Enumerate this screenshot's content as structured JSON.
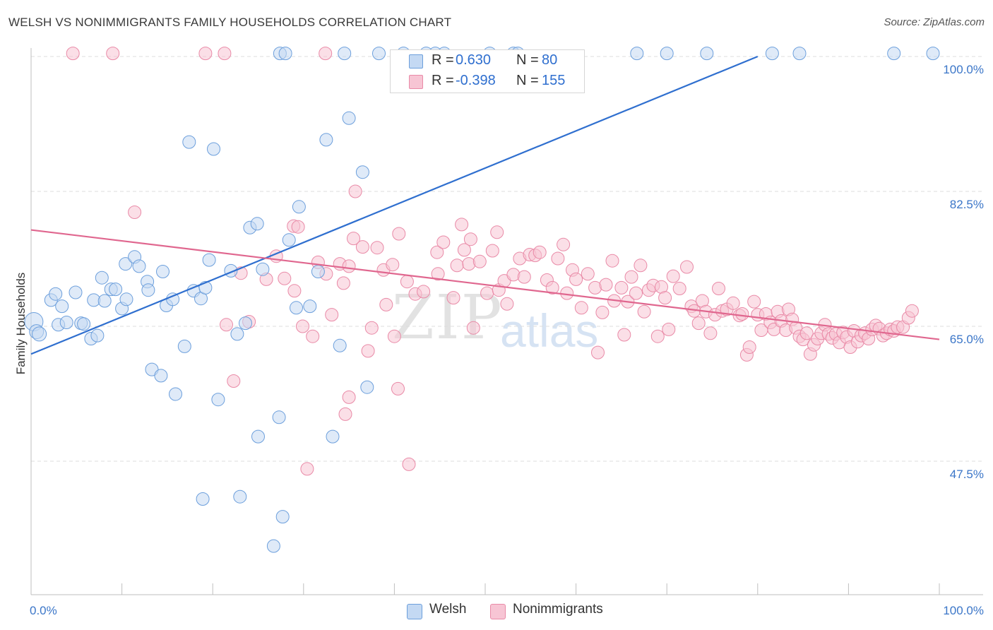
{
  "title": "WELSH VS NONIMMIGRANTS FAMILY HOUSEHOLDS CORRELATION CHART",
  "source": "Source: ZipAtlas.com",
  "watermark": {
    "zip": "ZIP",
    "atlas": "atlas"
  },
  "colors": {
    "welsh": "#6c9fdc",
    "welsh_fill": "#c4d9f3",
    "welsh_line": "#2f6fcf",
    "nonimm": "#e98aa7",
    "nonimm_fill": "#f7c5d4",
    "nonimm_line": "#e0678f",
    "tick": "#3b76c8"
  },
  "legend": {
    "welsh": {
      "r_label": "R =",
      "r_value": "0.630",
      "n_label": "N =",
      "n_value": "80"
    },
    "nonimm": {
      "r_label": "R =",
      "r_value": "-0.398",
      "n_label": "N =",
      "n_value": "155"
    }
  },
  "bottom_legend": {
    "welsh": "Welsh",
    "nonimm": "Nonimmigrants"
  },
  "chart_data": {
    "type": "scatter",
    "title": "WELSH VS NONIMMIGRANTS FAMILY HOUSEHOLDS CORRELATION CHART",
    "xlabel": "",
    "ylabel": "Family Households",
    "xlim": [
      0,
      100
    ],
    "ylim": [
      30,
      101
    ],
    "y_ticks": [
      {
        "v": 100,
        "label": "100.0%"
      },
      {
        "v": 82.5,
        "label": "82.5%"
      },
      {
        "v": 65,
        "label": "65.0%"
      },
      {
        "v": 47.5,
        "label": "47.5%"
      }
    ],
    "x_tick_labels": [
      {
        "v": 0,
        "label": "0.0%"
      },
      {
        "v": 100,
        "label": "100.0%"
      }
    ],
    "series": [
      {
        "name": "Welsh",
        "R": 0.63,
        "N": 80,
        "trend": [
          [
            0,
            61.4
          ],
          [
            80,
            100
          ]
        ],
        "points": [
          [
            0.3,
            65.6
          ],
          [
            0.6,
            64.3
          ],
          [
            0.9,
            64.0
          ],
          [
            2.2,
            68.4
          ],
          [
            2.7,
            69.2
          ],
          [
            3.0,
            65.2
          ],
          [
            3.4,
            67.6
          ],
          [
            3.9,
            65.5
          ],
          [
            4.9,
            69.4
          ],
          [
            5.5,
            65.4
          ],
          [
            5.8,
            65.3
          ],
          [
            6.6,
            63.4
          ],
          [
            6.9,
            68.4
          ],
          [
            7.3,
            63.8
          ],
          [
            7.8,
            71.3
          ],
          [
            8.1,
            68.3
          ],
          [
            8.8,
            69.8
          ],
          [
            9.3,
            69.8
          ],
          [
            10.0,
            67.3
          ],
          [
            10.5,
            68.5
          ],
          [
            10.4,
            73.1
          ],
          [
            11.4,
            74.0
          ],
          [
            11.9,
            72.8
          ],
          [
            12.8,
            70.8
          ],
          [
            12.9,
            69.7
          ],
          [
            13.3,
            59.4
          ],
          [
            14.3,
            58.6
          ],
          [
            14.5,
            72.1
          ],
          [
            14.9,
            67.7
          ],
          [
            15.6,
            68.5
          ],
          [
            15.9,
            56.2
          ],
          [
            16.9,
            62.4
          ],
          [
            17.4,
            88.9
          ],
          [
            17.9,
            69.6
          ],
          [
            18.7,
            68.6
          ],
          [
            18.9,
            42.6
          ],
          [
            19.2,
            70.0
          ],
          [
            19.6,
            73.6
          ],
          [
            20.1,
            88.0
          ],
          [
            20.6,
            55.5
          ],
          [
            22.0,
            72.2
          ],
          [
            22.7,
            64.0
          ],
          [
            23.0,
            42.9
          ],
          [
            23.6,
            65.4
          ],
          [
            24.1,
            77.8
          ],
          [
            24.9,
            78.3
          ],
          [
            25.0,
            50.7
          ],
          [
            25.5,
            72.4
          ],
          [
            26.7,
            36.5
          ],
          [
            27.3,
            53.2
          ],
          [
            27.7,
            40.3
          ],
          [
            28.4,
            76.2
          ],
          [
            29.2,
            67.4
          ],
          [
            29.5,
            80.5
          ],
          [
            30.7,
            67.6
          ],
          [
            31.6,
            72.1
          ],
          [
            32.5,
            89.2
          ],
          [
            33.2,
            50.7
          ],
          [
            34.0,
            62.5
          ],
          [
            35.0,
            92.0
          ],
          [
            36.5,
            85.0
          ],
          [
            37.0,
            57.1
          ],
          [
            27.4,
            100.4
          ],
          [
            28.0,
            100.4
          ],
          [
            34.5,
            100.4
          ],
          [
            38.3,
            100.4
          ],
          [
            41.0,
            100.4
          ],
          [
            44.5,
            100.4
          ],
          [
            45.5,
            100.4
          ],
          [
            50.5,
            100.4
          ],
          [
            53.1,
            100.4
          ],
          [
            53.6,
            100.4
          ],
          [
            66.7,
            100.4
          ],
          [
            70.0,
            100.4
          ],
          [
            74.4,
            100.4
          ],
          [
            81.6,
            100.4
          ],
          [
            84.6,
            100.4
          ],
          [
            95.0,
            100.4
          ],
          [
            99.3,
            100.4
          ],
          [
            43.5,
            100.4
          ]
        ]
      },
      {
        "name": "Nonimmigrants",
        "R": -0.398,
        "N": 155,
        "trend": [
          [
            0,
            77.5
          ],
          [
            100,
            63.3
          ]
        ],
        "points": [
          [
            4.6,
            100.4
          ],
          [
            9.0,
            100.4
          ],
          [
            19.2,
            100.4
          ],
          [
            21.3,
            100.4
          ],
          [
            32.4,
            100.4
          ],
          [
            11.4,
            79.8
          ],
          [
            21.5,
            65.2
          ],
          [
            22.3,
            57.9
          ],
          [
            23.1,
            71.9
          ],
          [
            24.0,
            65.6
          ],
          [
            25.9,
            71.1
          ],
          [
            27.0,
            74.1
          ],
          [
            27.9,
            71.2
          ],
          [
            28.9,
            78.0
          ],
          [
            29.4,
            77.9
          ],
          [
            29.0,
            69.6
          ],
          [
            29.9,
            65.0
          ],
          [
            30.4,
            46.5
          ],
          [
            31.0,
            63.7
          ],
          [
            31.6,
            73.3
          ],
          [
            32.5,
            71.8
          ],
          [
            33.1,
            66.5
          ],
          [
            34.0,
            73.1
          ],
          [
            34.4,
            70.6
          ],
          [
            35.0,
            72.8
          ],
          [
            35.5,
            76.4
          ],
          [
            35.7,
            82.5
          ],
          [
            36.5,
            75.3
          ],
          [
            37.1,
            61.8
          ],
          [
            37.5,
            64.8
          ],
          [
            38.1,
            75.2
          ],
          [
            38.8,
            72.3
          ],
          [
            39.1,
            67.8
          ],
          [
            39.8,
            73.0
          ],
          [
            40.0,
            63.7
          ],
          [
            40.4,
            56.9
          ],
          [
            40.5,
            77.0
          ],
          [
            41.4,
            70.8
          ],
          [
            41.6,
            47.1
          ],
          [
            42.3,
            69.2
          ],
          [
            43.2,
            69.5
          ],
          [
            44.7,
            74.6
          ],
          [
            44.8,
            71.8
          ],
          [
            45.4,
            75.9
          ],
          [
            46.5,
            68.7
          ],
          [
            46.9,
            72.9
          ],
          [
            47.4,
            78.2
          ],
          [
            47.7,
            74.9
          ],
          [
            48.2,
            73.1
          ],
          [
            48.4,
            76.3
          ],
          [
            48.7,
            64.8
          ],
          [
            49.4,
            73.4
          ],
          [
            50.2,
            69.3
          ],
          [
            50.8,
            74.8
          ],
          [
            51.3,
            77.2
          ],
          [
            51.5,
            69.7
          ],
          [
            52.1,
            70.9
          ],
          [
            52.4,
            67.9
          ],
          [
            53.1,
            71.7
          ],
          [
            53.8,
            73.8
          ],
          [
            54.3,
            71.4
          ],
          [
            54.9,
            74.3
          ],
          [
            55.5,
            74.2
          ],
          [
            56.0,
            74.6
          ],
          [
            56.8,
            71.0
          ],
          [
            57.4,
            70.0
          ],
          [
            58.0,
            73.8
          ],
          [
            58.6,
            75.6
          ],
          [
            59.0,
            69.3
          ],
          [
            59.6,
            72.3
          ],
          [
            60.0,
            71.1
          ],
          [
            60.6,
            67.4
          ],
          [
            61.3,
            71.8
          ],
          [
            62.1,
            70.0
          ],
          [
            62.4,
            61.6
          ],
          [
            62.9,
            66.8
          ],
          [
            63.3,
            70.4
          ],
          [
            64.0,
            73.5
          ],
          [
            64.2,
            68.3
          ],
          [
            65.0,
            70.0
          ],
          [
            65.3,
            63.9
          ],
          [
            65.7,
            68.2
          ],
          [
            66.1,
            71.4
          ],
          [
            66.6,
            69.3
          ],
          [
            67.1,
            72.9
          ],
          [
            67.5,
            66.9
          ],
          [
            68.0,
            69.7
          ],
          [
            68.5,
            70.3
          ],
          [
            69.0,
            63.7
          ],
          [
            69.4,
            70.1
          ],
          [
            69.8,
            68.7
          ],
          [
            70.2,
            64.6
          ],
          [
            70.7,
            71.5
          ],
          [
            71.4,
            69.9
          ],
          [
            72.2,
            72.7
          ],
          [
            72.7,
            67.6
          ],
          [
            73.0,
            67.0
          ],
          [
            73.5,
            65.4
          ],
          [
            73.9,
            68.3
          ],
          [
            74.3,
            66.9
          ],
          [
            74.8,
            64.1
          ],
          [
            75.3,
            66.5
          ],
          [
            75.7,
            69.9
          ],
          [
            76.1,
            67.0
          ],
          [
            76.6,
            67.2
          ],
          [
            77.3,
            68.0
          ],
          [
            78.0,
            66.4
          ],
          [
            78.3,
            66.6
          ],
          [
            78.8,
            61.3
          ],
          [
            79.1,
            62.3
          ],
          [
            79.6,
            68.2
          ],
          [
            80.0,
            66.5
          ],
          [
            80.4,
            64.5
          ],
          [
            80.9,
            66.6
          ],
          [
            81.4,
            65.5
          ],
          [
            81.8,
            64.6
          ],
          [
            82.2,
            66.9
          ],
          [
            82.6,
            65.7
          ],
          [
            83.1,
            64.5
          ],
          [
            83.4,
            67.2
          ],
          [
            83.8,
            65.9
          ],
          [
            84.2,
            64.8
          ],
          [
            84.6,
            63.7
          ],
          [
            85.0,
            63.3
          ],
          [
            85.4,
            64.1
          ],
          [
            85.8,
            61.4
          ],
          [
            86.2,
            62.6
          ],
          [
            86.6,
            63.4
          ],
          [
            87.0,
            64.1
          ],
          [
            87.4,
            65.2
          ],
          [
            87.8,
            64.0
          ],
          [
            88.2,
            63.5
          ],
          [
            88.6,
            64.0
          ],
          [
            89.0,
            62.9
          ],
          [
            89.4,
            64.2
          ],
          [
            89.8,
            63.6
          ],
          [
            90.2,
            62.3
          ],
          [
            90.6,
            64.4
          ],
          [
            91.0,
            63.0
          ],
          [
            91.4,
            63.8
          ],
          [
            91.8,
            64.1
          ],
          [
            92.2,
            63.4
          ],
          [
            92.6,
            64.6
          ],
          [
            93.0,
            65.1
          ],
          [
            93.4,
            64.7
          ],
          [
            93.8,
            63.8
          ],
          [
            94.2,
            64.1
          ],
          [
            94.6,
            64.6
          ],
          [
            95.0,
            64.4
          ],
          [
            95.4,
            64.9
          ],
          [
            96.0,
            64.9
          ],
          [
            96.6,
            66.1
          ],
          [
            97.0,
            67.0
          ],
          [
            34.6,
            53.6
          ],
          [
            35.0,
            55.8
          ]
        ]
      }
    ]
  }
}
